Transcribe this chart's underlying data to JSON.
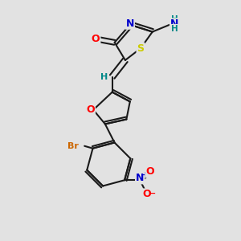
{
  "bg_color": "#e2e2e2",
  "bond_color": "#1a1a1a",
  "bond_width": 1.5,
  "atom_colors": {
    "O": "#ff0000",
    "N": "#0000cc",
    "S": "#cccc00",
    "Br": "#cc6600",
    "H": "#008888",
    "C": "#1a1a1a"
  },
  "font_size": 9,
  "fig_size": [
    3.0,
    3.0
  ],
  "dpi": 100
}
